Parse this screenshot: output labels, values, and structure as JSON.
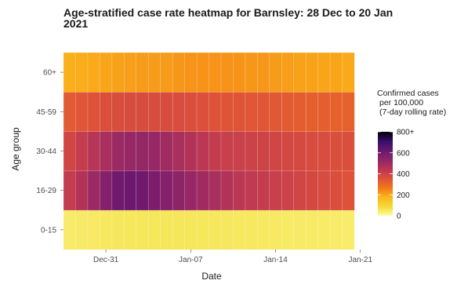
{
  "chart_data": {
    "type": "heatmap",
    "title_lines": [
      "Age-stratified case rate heatmap for Barnsley: 28 Dec to 20 Jan",
      "2021"
    ],
    "xlabel": "Date",
    "ylabel": "Age group",
    "x_ticks": [
      "Dec-31",
      "Jan-07",
      "Jan-14",
      "Jan-21"
    ],
    "x_start": "2020-12-28",
    "x_end": "2021-01-20",
    "dates": [
      "2020-12-28",
      "2020-12-29",
      "2020-12-30",
      "2020-12-31",
      "2021-01-01",
      "2021-01-02",
      "2021-01-03",
      "2021-01-04",
      "2021-01-05",
      "2021-01-06",
      "2021-01-07",
      "2021-01-08",
      "2021-01-09",
      "2021-01-10",
      "2021-01-11",
      "2021-01-12",
      "2021-01-13",
      "2021-01-14",
      "2021-01-15",
      "2021-01-16",
      "2021-01-17",
      "2021-01-18",
      "2021-01-19",
      "2021-01-20"
    ],
    "age_groups": [
      "0-15",
      "16-29",
      "30-44",
      "45-59",
      "60+"
    ],
    "values": {
      "60+": [
        185,
        190,
        195,
        200,
        205,
        210,
        215,
        215,
        215,
        220,
        225,
        225,
        225,
        225,
        225,
        220,
        220,
        215,
        210,
        205,
        205,
        200,
        200,
        195
      ],
      "45-59": [
        330,
        340,
        350,
        360,
        365,
        370,
        370,
        370,
        370,
        365,
        360,
        355,
        350,
        345,
        345,
        340,
        340,
        335,
        330,
        325,
        320,
        320,
        315,
        315
      ],
      "30-44": [
        390,
        420,
        450,
        480,
        510,
        520,
        525,
        520,
        500,
        480,
        460,
        440,
        420,
        410,
        405,
        400,
        395,
        390,
        380,
        375,
        370,
        365,
        360,
        360
      ],
      "16-29": [
        420,
        460,
        510,
        560,
        600,
        610,
        600,
        580,
        560,
        540,
        520,
        500,
        480,
        460,
        440,
        430,
        420,
        410,
        400,
        390,
        380,
        370,
        360,
        350
      ],
      "0-15": [
        45,
        48,
        50,
        52,
        54,
        56,
        58,
        58,
        58,
        58,
        57,
        56,
        55,
        54,
        53,
        52,
        51,
        50,
        49,
        48,
        47,
        46,
        45,
        44
      ]
    },
    "legend": {
      "title_lines": [
        "Confirmed cases",
        "per 100,000",
        "(7-day rolling rate)"
      ],
      "ticks": [
        "800+",
        "600",
        "400",
        "200",
        "0"
      ],
      "range": [
        0,
        800
      ]
    },
    "colormap": "inferno-reversed"
  }
}
